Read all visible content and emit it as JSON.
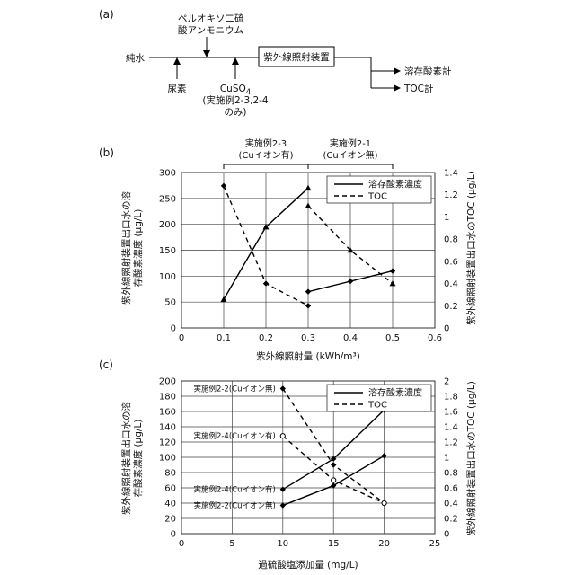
{
  "diagram": {
    "panel_label": "(a)",
    "source": "純水",
    "reagent_top": [
      "ペルオキソ二硫",
      "酸アンモニウム"
    ],
    "reagent_urea": "尿素",
    "reagent_cu": [
      "CuSO",
      "4"
    ],
    "reagent_cu_note": [
      "(実施例2-3,2-4",
      "のみ)"
    ],
    "device": "紫外線照射装置",
    "outputs": [
      "溶存酸素計",
      "TOC計"
    ]
  },
  "chart_data": [
    {
      "type": "line",
      "panel_label": "(b)",
      "xlabel": "紫外線照射量 (kWh/m³)",
      "ylabel_left": [
        "紫外線照射装置出口水の溶",
        "存酸素濃度 (μg/L)"
      ],
      "ylabel_right": "紫外線照射装置出口水のTOC (μg/L)",
      "xlim": [
        0,
        0.6
      ],
      "ylim_left": [
        0,
        300
      ],
      "ylim_right": [
        0,
        1.4
      ],
      "xticks": [
        "0",
        "0.1",
        "0.2",
        "0.3",
        "0.4",
        "0.5",
        "0.6"
      ],
      "yticks_left": [
        "0",
        "50",
        "100",
        "150",
        "200",
        "250",
        "300"
      ],
      "yticks_right": [
        "0",
        "0.2",
        "0.4",
        "0.6",
        "0.8",
        "1",
        "1.2",
        "1.4"
      ],
      "legend": [
        "溶存酸素濃度",
        "TOC"
      ],
      "groups": [
        {
          "label": [
            "実施例2-3",
            "(Cuイオン有)"
          ]
        },
        {
          "label": [
            "実施例2-1",
            "(Cuイオン無)"
          ]
        }
      ],
      "series": [
        {
          "name": "溶存酸素濃度",
          "axis": "left",
          "style": "solid",
          "marker": "triangle",
          "x": [
            0.1,
            0.2,
            0.3
          ],
          "values": [
            55,
            195,
            270
          ]
        },
        {
          "name": "溶存酸素濃度",
          "axis": "left",
          "style": "solid",
          "marker": "diamond",
          "x": [
            0.3,
            0.4,
            0.5
          ],
          "values": [
            70,
            90,
            110
          ]
        },
        {
          "name": "TOC",
          "axis": "right",
          "style": "dash",
          "marker": "diamond",
          "x": [
            0.1,
            0.2,
            0.3
          ],
          "values": [
            1.28,
            0.4,
            0.2
          ]
        },
        {
          "name": "TOC",
          "axis": "right",
          "style": "dash",
          "marker": "triangle",
          "x": [
            0.3,
            0.4,
            0.5
          ],
          "values": [
            1.1,
            0.7,
            0.4
          ]
        }
      ]
    },
    {
      "type": "line",
      "panel_label": "(c)",
      "xlabel": "過硫酸塩添加量 (mg/L)",
      "ylabel_left": [
        "紫外線照射装置出口水の溶",
        "存酸素濃度 (μg/L)"
      ],
      "ylabel_right": "紫外線照射装置出口水のTOC (μg/L)",
      "xlim": [
        0,
        25
      ],
      "ylim_left": [
        0,
        200
      ],
      "ylim_right": [
        0,
        2
      ],
      "xticks": [
        "0",
        "5",
        "10",
        "15",
        "20",
        "25"
      ],
      "yticks_left": [
        "0",
        "20",
        "40",
        "60",
        "80",
        "100",
        "120",
        "140",
        "160",
        "180",
        "200"
      ],
      "yticks_right": [
        "0",
        "0.2",
        "0.4",
        "0.6",
        "0.8",
        "1",
        "1.2",
        "1.4",
        "1.6",
        "1.8",
        "2"
      ],
      "legend": [
        "溶存酸素濃度",
        "TOC"
      ],
      "annotations": [
        "実施例2-2(Cuイオン無)",
        "実施例2-4(Cuイオン有)",
        "実施例2-4(Cuイオン有)",
        "実施例2-2(Cuイオン無)"
      ],
      "series": [
        {
          "name": "溶存酸素濃度",
          "axis": "left",
          "style": "solid",
          "marker": "diamond",
          "x": [
            10,
            15,
            20
          ],
          "values": [
            58,
            98,
            162
          ]
        },
        {
          "name": "溶存酸素濃度",
          "axis": "left",
          "style": "solid",
          "marker": "diamond",
          "x": [
            10,
            15,
            20
          ],
          "values": [
            37,
            63,
            102
          ]
        },
        {
          "name": "TOC",
          "axis": "right",
          "style": "dash",
          "marker": "diamond",
          "x": [
            10,
            15,
            20
          ],
          "values": [
            1.9,
            0.9,
            0.4
          ]
        },
        {
          "name": "TOC",
          "axis": "right",
          "style": "dash",
          "marker": "circle",
          "x": [
            10,
            15,
            20
          ],
          "values": [
            1.28,
            0.7,
            0.4
          ]
        }
      ]
    }
  ]
}
